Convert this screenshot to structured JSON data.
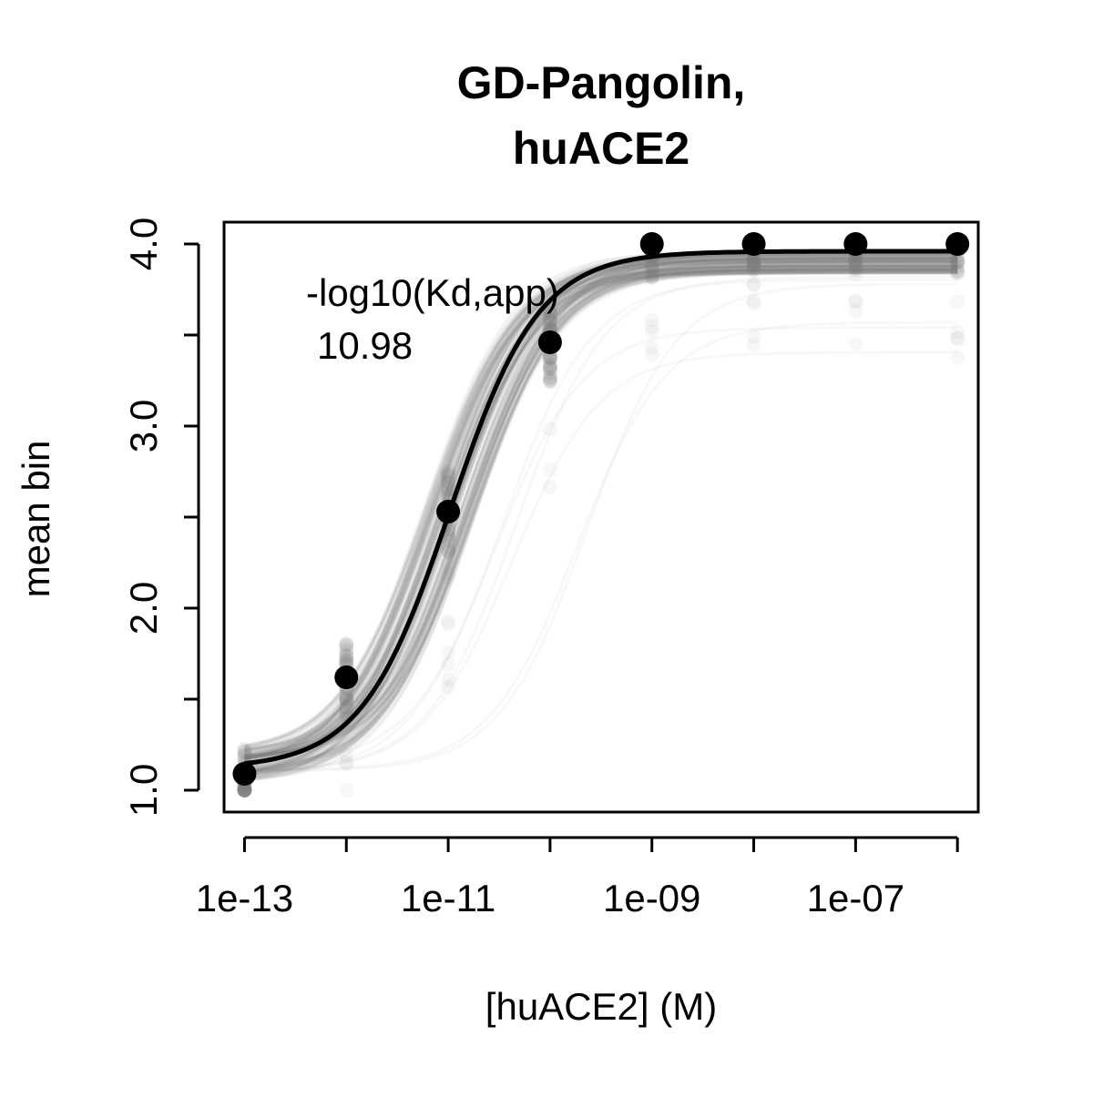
{
  "chart_data": {
    "type": "scatter",
    "title_lines": [
      "GD-Pangolin,",
      "huACE2"
    ],
    "xlabel": "[huACE2] (M)",
    "ylabel": "mean bin",
    "x_scale": "log10",
    "xlim": [
      6.3e-14,
      1.6e-06
    ],
    "ylim": [
      0.88,
      4.12
    ],
    "x_ticks": [
      1e-13,
      1e-11,
      1e-09,
      1e-07
    ],
    "x_tick_labels": [
      "1e-13",
      "1e-11",
      "1e-09",
      "1e-07"
    ],
    "x_minor_ticks": [
      1e-12,
      1e-10,
      1e-08,
      1e-06
    ],
    "y_ticks": [
      1.0,
      1.5,
      2.0,
      2.5,
      3.0,
      3.5,
      4.0
    ],
    "y_tick_labels": [
      "1.0",
      "",
      "2.0",
      "",
      "3.0",
      "",
      "4.0"
    ],
    "grid": false,
    "annotation": {
      "label": "-log10(Kd,app)",
      "value": "10.98"
    },
    "series": [
      {
        "kind": "points",
        "x": [
          1e-13,
          1e-12,
          1e-11,
          1e-10,
          1e-09,
          1e-08,
          1e-07,
          1e-06
        ],
        "y": [
          1.09,
          1.62,
          2.53,
          3.46,
          4.0,
          4.0,
          4.0,
          4.0
        ]
      },
      {
        "kind": "fit",
        "model": "hill",
        "log10_kd": -10.98,
        "bottom": 1.12,
        "top": 3.96,
        "x_range": [
          1e-13,
          1e-06
        ]
      }
    ],
    "colors": {
      "points": "#000000",
      "fit": "#000000",
      "bootstrap": "#7f7f7f"
    }
  }
}
